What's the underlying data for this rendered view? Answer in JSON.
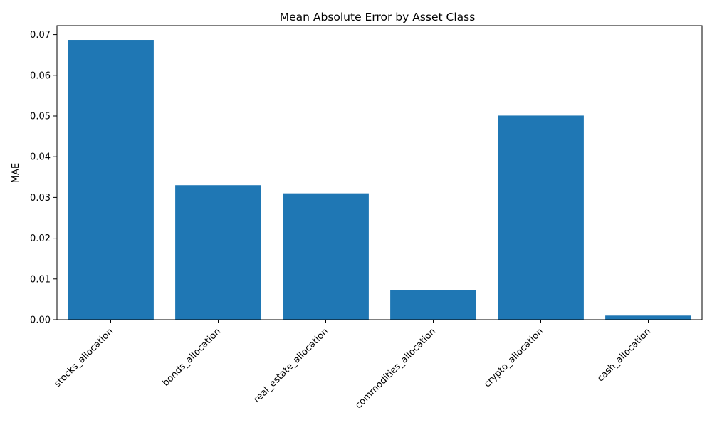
{
  "chart_data": {
    "type": "bar",
    "title": "Mean Absolute Error by Asset Class",
    "xlabel": "",
    "ylabel": "MAE",
    "categories": [
      "stocks_allocation",
      "bonds_allocation",
      "real_estate_allocation",
      "commodities_allocation",
      "crypto_allocation",
      "cash_allocation"
    ],
    "values": [
      0.0687,
      0.033,
      0.031,
      0.0073,
      0.0501,
      0.001
    ],
    "ylim": [
      0,
      0.0722
    ],
    "yticks": [
      0.0,
      0.01,
      0.02,
      0.03,
      0.04,
      0.05,
      0.06,
      0.07
    ],
    "ytick_labels": [
      "0.00",
      "0.01",
      "0.02",
      "0.03",
      "0.04",
      "0.05",
      "0.06",
      "0.07"
    ],
    "bar_color": "#1f77b4",
    "grid": false,
    "legend": "none",
    "xtick_rotation_deg": 45
  }
}
